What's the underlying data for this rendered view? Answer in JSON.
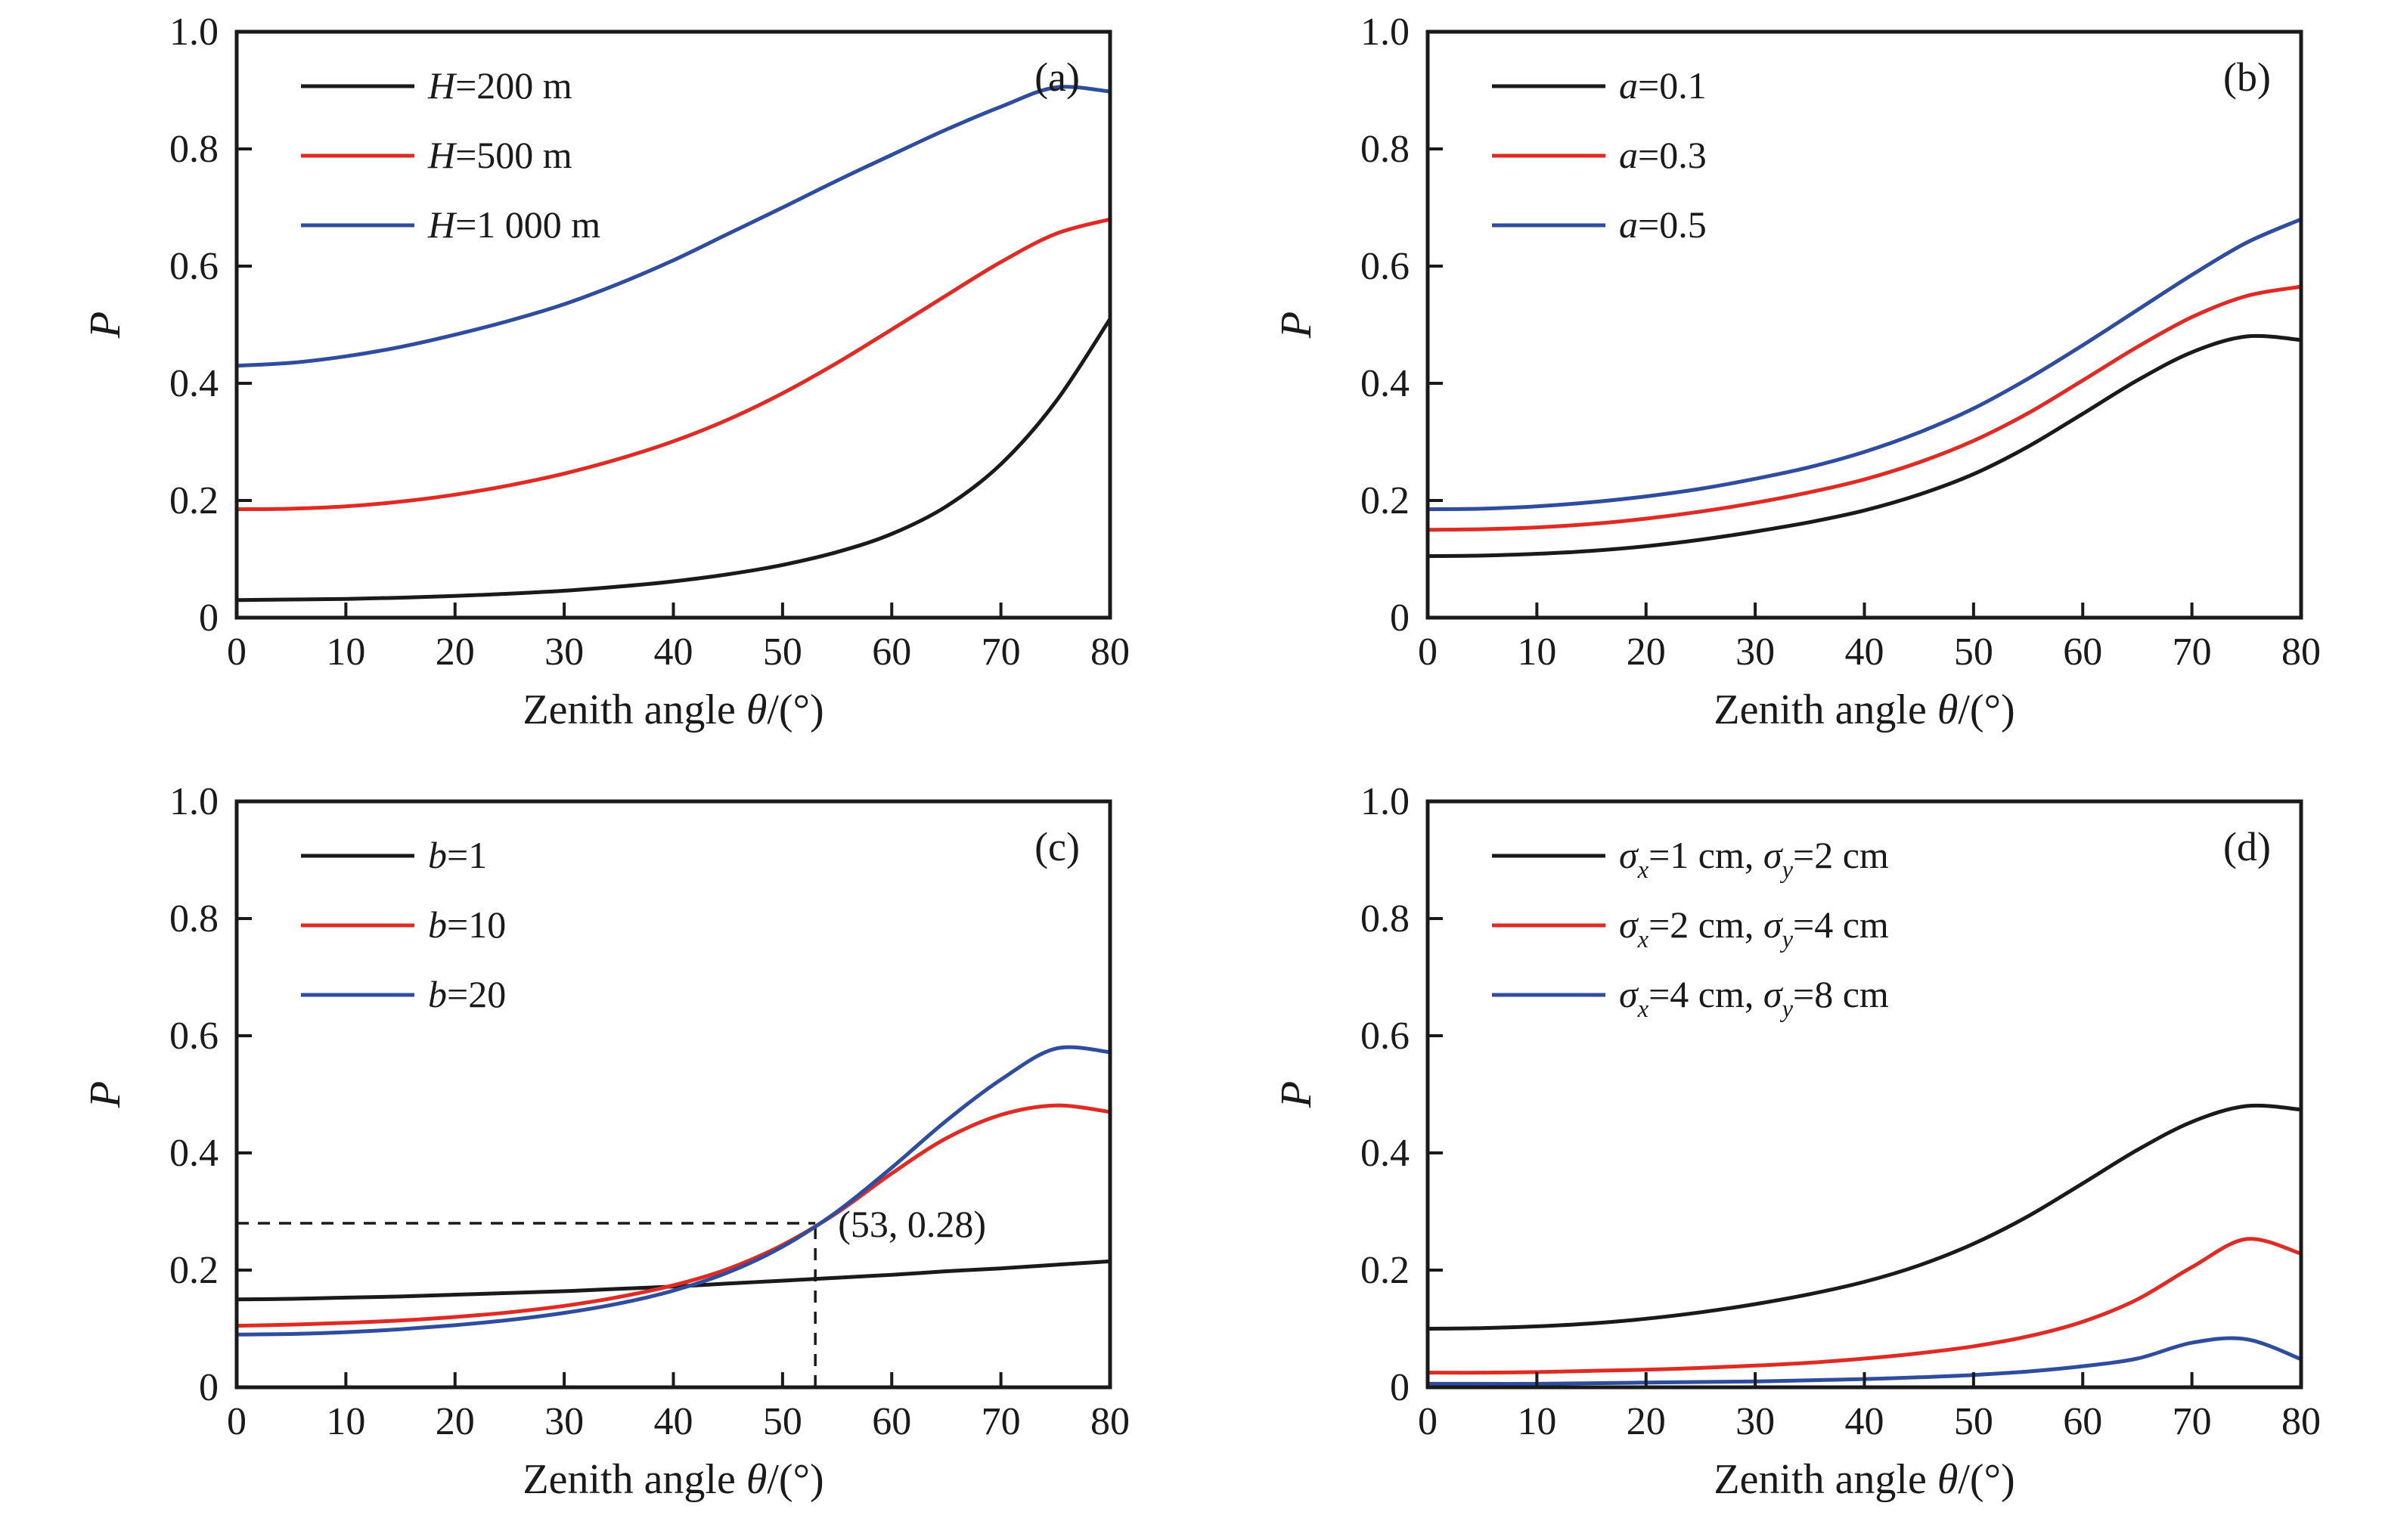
{
  "figure": {
    "background": "#ffffff",
    "description_visible_text_only": true,
    "xlabel": "Zenith angle *θ*/(°)",
    "ylabel": "*P*"
  },
  "colors": {
    "black": "#1a1a1a",
    "red": "#e02b24",
    "blue": "#2e4d9e"
  },
  "chart_data": [
    {
      "id": "a",
      "type": "line",
      "panel_label": "(a)",
      "xlabel": "Zenith angle *θ*/(°)",
      "ylabel": "*P*",
      "xlim": [
        0,
        80
      ],
      "ylim": [
        0,
        1.0
      ],
      "xticks": {
        "values": [
          0,
          10,
          20,
          30,
          40,
          50,
          60,
          70,
          80
        ],
        "labels": [
          "0",
          "10",
          "20",
          "30",
          "40",
          "50",
          "60",
          "70",
          "80"
        ]
      },
      "yticks": {
        "values": [
          0,
          0.2,
          0.4,
          0.6,
          0.8,
          1.0
        ],
        "labels": [
          "0",
          "0.2",
          "0.4",
          "0.6",
          "0.8",
          "1.0"
        ]
      },
      "x": [
        0,
        5,
        10,
        15,
        20,
        25,
        30,
        35,
        40,
        45,
        50,
        55,
        60,
        65,
        70,
        75,
        80
      ],
      "legend_position": "top-left",
      "grid": false,
      "series": [
        {
          "name": "*H*=200 m",
          "color": "#1a1a1a",
          "y": [
            0.03,
            0.031,
            0.032,
            0.034,
            0.037,
            0.041,
            0.046,
            0.053,
            0.062,
            0.074,
            0.09,
            0.112,
            0.143,
            0.19,
            0.262,
            0.368,
            0.51
          ]
        },
        {
          "name": "*H*=500 m",
          "color": "#e02b24",
          "y": [
            0.185,
            0.186,
            0.19,
            0.198,
            0.21,
            0.226,
            0.246,
            0.271,
            0.301,
            0.338,
            0.383,
            0.435,
            0.492,
            0.55,
            0.607,
            0.655,
            0.68
          ]
        },
        {
          "name": "*H*=1 000 m",
          "color": "#2e4d9e",
          "y": [
            0.43,
            0.435,
            0.446,
            0.462,
            0.483,
            0.507,
            0.535,
            0.57,
            0.61,
            0.655,
            0.7,
            0.746,
            0.79,
            0.833,
            0.872,
            0.905,
            0.898
          ]
        }
      ]
    },
    {
      "id": "b",
      "type": "line",
      "panel_label": "(b)",
      "xlabel": "Zenith angle *θ*/(°)",
      "ylabel": "*P*",
      "xlim": [
        0,
        80
      ],
      "ylim": [
        0,
        1.0
      ],
      "xticks": {
        "values": [
          0,
          10,
          20,
          30,
          40,
          50,
          60,
          70,
          80
        ],
        "labels": [
          "0",
          "10",
          "20",
          "30",
          "40",
          "50",
          "60",
          "70",
          "80"
        ]
      },
      "yticks": {
        "values": [
          0,
          0.2,
          0.4,
          0.6,
          0.8,
          1.0
        ],
        "labels": [
          "0",
          "0.2",
          "0.4",
          "0.6",
          "0.8",
          "1.0"
        ]
      },
      "x": [
        0,
        5,
        10,
        15,
        20,
        25,
        30,
        35,
        40,
        45,
        50,
        55,
        60,
        65,
        70,
        75,
        80
      ],
      "legend_position": "top-left",
      "grid": false,
      "series": [
        {
          "name": "*a*=0.1",
          "color": "#1a1a1a",
          "y": [
            0.105,
            0.106,
            0.109,
            0.114,
            0.122,
            0.133,
            0.147,
            0.163,
            0.183,
            0.21,
            0.245,
            0.292,
            0.348,
            0.405,
            0.453,
            0.48,
            0.474
          ]
        },
        {
          "name": "*a*=0.3",
          "color": "#e02b24",
          "y": [
            0.15,
            0.151,
            0.154,
            0.16,
            0.169,
            0.181,
            0.196,
            0.214,
            0.236,
            0.265,
            0.302,
            0.349,
            0.405,
            0.462,
            0.513,
            0.549,
            0.565
          ]
        },
        {
          "name": "*a*=0.5",
          "color": "#2e4d9e",
          "y": [
            0.185,
            0.186,
            0.19,
            0.197,
            0.207,
            0.22,
            0.237,
            0.257,
            0.283,
            0.316,
            0.357,
            0.408,
            0.465,
            0.525,
            0.585,
            0.64,
            0.68
          ]
        }
      ]
    },
    {
      "id": "c",
      "type": "line",
      "panel_label": "(c)",
      "xlabel": "Zenith angle *θ*/(°)",
      "ylabel": "*P*",
      "xlim": [
        0,
        80
      ],
      "ylim": [
        0,
        1.0
      ],
      "xticks": {
        "values": [
          0,
          10,
          20,
          30,
          40,
          50,
          60,
          70,
          80
        ],
        "labels": [
          "0",
          "10",
          "20",
          "30",
          "40",
          "50",
          "60",
          "70",
          "80"
        ]
      },
      "yticks": {
        "values": [
          0,
          0.2,
          0.4,
          0.6,
          0.8,
          1.0
        ],
        "labels": [
          "0",
          "0.2",
          "0.4",
          "0.6",
          "0.8",
          "1.0"
        ]
      },
      "x": [
        0,
        5,
        10,
        15,
        20,
        25,
        30,
        35,
        40,
        45,
        50,
        55,
        60,
        65,
        70,
        75,
        80
      ],
      "legend_position": "top-left",
      "grid": false,
      "annotation": {
        "text": "(53, 0.28)",
        "x": 53,
        "y": 0.28,
        "dashed_guides": true
      },
      "series": [
        {
          "name": "*b*=1",
          "color": "#1a1a1a",
          "y": [
            0.15,
            0.151,
            0.153,
            0.155,
            0.158,
            0.161,
            0.164,
            0.168,
            0.172,
            0.177,
            0.182,
            0.187,
            0.192,
            0.198,
            0.203,
            0.209,
            0.215
          ]
        },
        {
          "name": "*b*=10",
          "color": "#e02b24",
          "y": [
            0.105,
            0.107,
            0.11,
            0.114,
            0.12,
            0.128,
            0.139,
            0.154,
            0.174,
            0.202,
            0.243,
            0.298,
            0.365,
            0.425,
            0.465,
            0.481,
            0.47
          ]
        },
        {
          "name": "*b*=20",
          "color": "#2e4d9e",
          "y": [
            0.09,
            0.091,
            0.094,
            0.099,
            0.106,
            0.115,
            0.127,
            0.143,
            0.165,
            0.196,
            0.24,
            0.3,
            0.375,
            0.455,
            0.525,
            0.578,
            0.572
          ]
        }
      ]
    },
    {
      "id": "d",
      "type": "line",
      "panel_label": "(d)",
      "xlabel": "Zenith angle *θ*/(°)",
      "ylabel": "*P*",
      "xlim": [
        0,
        80
      ],
      "ylim": [
        0,
        1.0
      ],
      "xticks": {
        "values": [
          0,
          10,
          20,
          30,
          40,
          50,
          60,
          70,
          80
        ],
        "labels": [
          "0",
          "10",
          "20",
          "30",
          "40",
          "50",
          "60",
          "70",
          "80"
        ]
      },
      "yticks": {
        "values": [
          0,
          0.2,
          0.4,
          0.6,
          0.8,
          1.0
        ],
        "labels": [
          "0",
          "0.2",
          "0.4",
          "0.6",
          "0.8",
          "1.0"
        ]
      },
      "x": [
        0,
        5,
        10,
        15,
        20,
        25,
        30,
        35,
        40,
        45,
        50,
        55,
        60,
        65,
        70,
        75,
        80
      ],
      "legend_position": "top-left",
      "grid": false,
      "series": [
        {
          "name": "*σ*_x_=1 cm, *σ*_y_=2 cm",
          "color": "#1a1a1a",
          "y": [
            0.1,
            0.101,
            0.104,
            0.109,
            0.117,
            0.128,
            0.142,
            0.159,
            0.18,
            0.208,
            0.245,
            0.292,
            0.348,
            0.405,
            0.453,
            0.48,
            0.474
          ]
        },
        {
          "name": "*σ*_x_=2 cm, *σ*_y_=4 cm",
          "color": "#e02b24",
          "y": [
            0.025,
            0.025,
            0.026,
            0.028,
            0.03,
            0.033,
            0.037,
            0.042,
            0.049,
            0.058,
            0.07,
            0.087,
            0.112,
            0.15,
            0.205,
            0.253,
            0.228
          ]
        },
        {
          "name": "*σ*_x_=4 cm, *σ*_y_=8 cm",
          "color": "#2e4d9e",
          "y": [
            0.006,
            0.006,
            0.006,
            0.007,
            0.008,
            0.009,
            0.01,
            0.012,
            0.014,
            0.017,
            0.021,
            0.027,
            0.036,
            0.049,
            0.076,
            0.082,
            0.048
          ]
        }
      ]
    }
  ]
}
